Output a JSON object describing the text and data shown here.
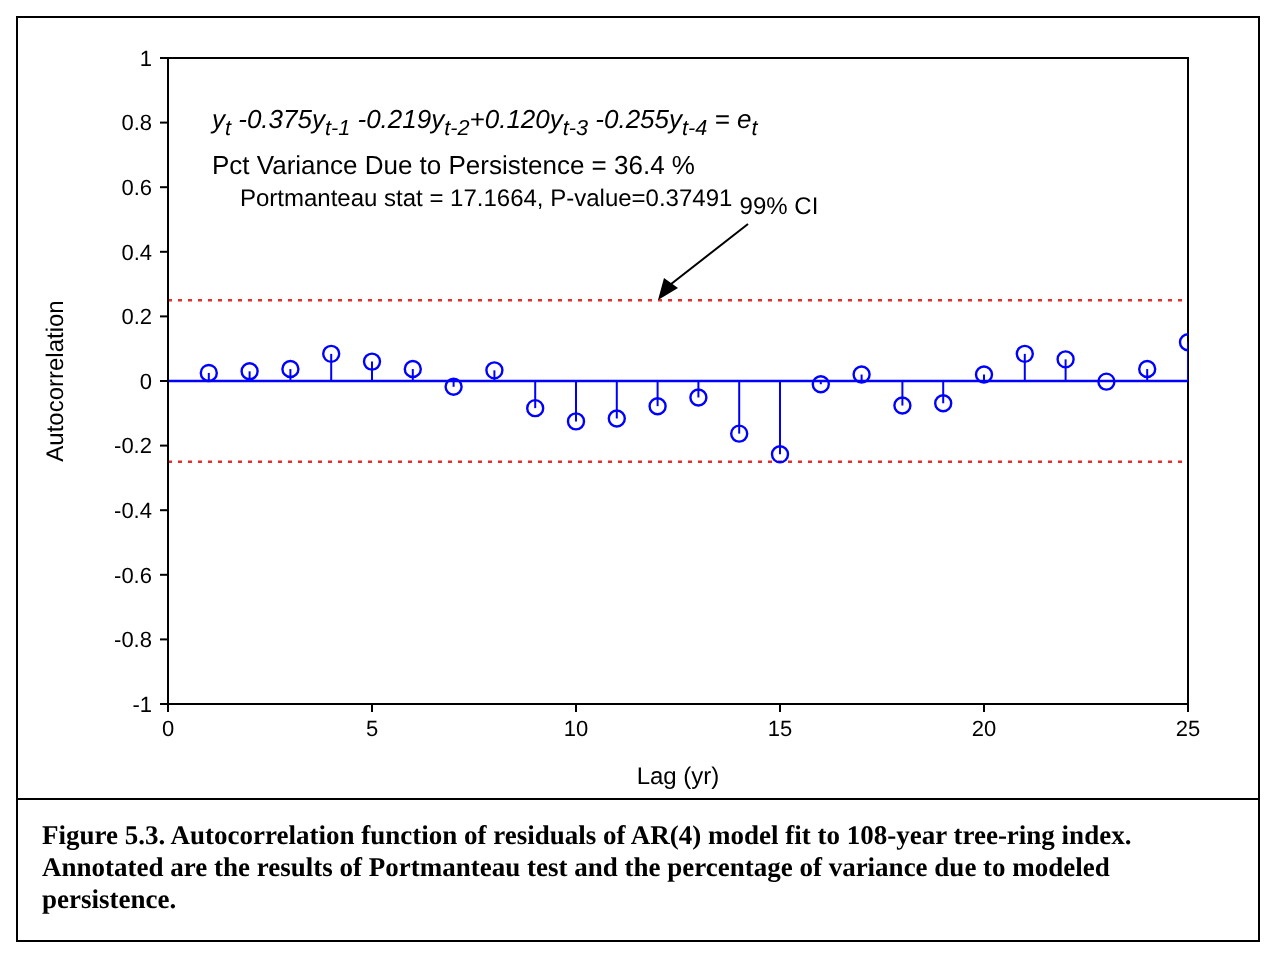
{
  "chart_data": {
    "type": "lollipop",
    "xlabel": "Lag (yr)",
    "ylabel": "Autocorrelation",
    "x": [
      1,
      2,
      3,
      4,
      5,
      6,
      7,
      8,
      9,
      10,
      11,
      12,
      13,
      14,
      15,
      16,
      17,
      18,
      19,
      20,
      21,
      22,
      23,
      24,
      25
    ],
    "values": [
      0.025,
      0.03,
      0.037,
      0.084,
      0.06,
      0.037,
      -0.018,
      0.033,
      -0.084,
      -0.125,
      -0.116,
      -0.078,
      -0.051,
      -0.163,
      -0.227,
      -0.01,
      0.02,
      -0.076,
      -0.069,
      0.02,
      0.084,
      0.067,
      -0.002,
      0.037,
      0.12
    ],
    "color": "#0000ff",
    "marker": "circle",
    "xlim": [
      0,
      25
    ],
    "xticks": [
      0,
      5,
      10,
      15,
      20,
      25
    ],
    "ylim": [
      -1,
      1
    ],
    "yticks": [
      -1,
      -0.8,
      -0.6,
      -0.4,
      -0.2,
      0,
      0.2,
      0.4,
      0.6,
      0.8,
      1
    ],
    "grid": false,
    "ref_lines": [
      {
        "axis": "y",
        "value": 0.25,
        "label": "99% CI",
        "color": "#e03030",
        "line_style": "dotted"
      },
      {
        "axis": "y",
        "value": -0.25,
        "color": "#e03030",
        "line_style": "dotted"
      },
      {
        "axis": "y",
        "value": 0,
        "color": "#0000ff",
        "line_style": "solid"
      }
    ],
    "annotations": [
      "y$_{t}$   -0.375y$_{t-1}$ -0.219y$_{t-2}$+0.120y$_{t-3}$ -0.255y$_{t-4}$ = e$_{t}$",
      "Pct Variance Due to Persistence =  36.4  %",
      "Portmanteau stat =  17.1664, P-value=0.37491",
      "Figure 5.3.  Autocorrelation function of residuals of AR(4) model fit to 108-year tree-ring index. Annotated are the results of Portmanteau test and the percentage of variance due to modeled persistence."
    ]
  }
}
